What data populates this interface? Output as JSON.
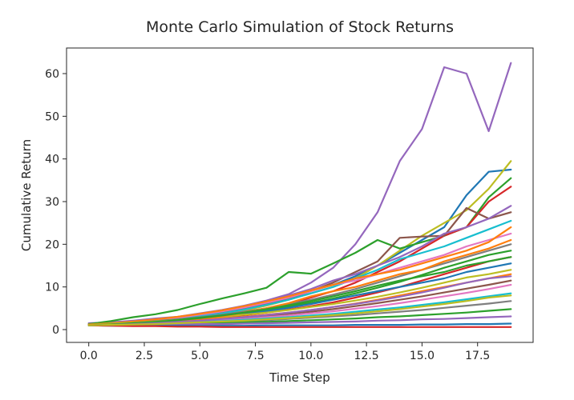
{
  "chart_data": {
    "type": "line",
    "title": "Monte Carlo Simulation of Stock Returns",
    "xlabel": "Time Step",
    "ylabel": "Cumulative Return",
    "xlim": [
      -1,
      20
    ],
    "ylim": [
      -3,
      66
    ],
    "xticks": [
      0.0,
      2.5,
      5.0,
      7.5,
      10.0,
      12.5,
      15.0,
      17.5
    ],
    "xtick_labels": [
      "0.0",
      "2.5",
      "5.0",
      "7.5",
      "10.0",
      "12.5",
      "15.0",
      "17.5"
    ],
    "yticks": [
      0,
      10,
      20,
      30,
      40,
      50,
      60
    ],
    "ytick_labels": [
      "0",
      "10",
      "20",
      "30",
      "40",
      "50",
      "60"
    ],
    "grid": false,
    "legend": "none",
    "x": [
      0,
      1,
      2,
      3,
      4,
      5,
      6,
      7,
      8,
      9,
      10,
      11,
      12,
      13,
      14,
      15,
      16,
      17,
      18,
      19
    ],
    "series": [
      {
        "color": "#9467bd",
        "values": [
          1.5,
          1.7,
          2.1,
          2.6,
          3.0,
          3.8,
          4.6,
          5.6,
          6.8,
          8.3,
          11.0,
          14.5,
          20.0,
          27.5,
          39.5,
          47.0,
          61.5,
          60.0,
          46.5,
          62.5
        ]
      },
      {
        "color": "#1f77b4",
        "values": [
          1.2,
          1.5,
          1.9,
          2.3,
          2.9,
          3.5,
          4.2,
          5.0,
          6.0,
          7.4,
          9.0,
          10.5,
          12.5,
          15.0,
          18.0,
          21.0,
          24.0,
          31.5,
          37.0,
          37.5
        ]
      },
      {
        "color": "#bcbd22",
        "values": [
          1.1,
          1.3,
          1.6,
          2.0,
          2.4,
          3.0,
          3.7,
          4.5,
          5.6,
          7.0,
          8.5,
          10.0,
          12.0,
          15.0,
          18.5,
          22.0,
          25.0,
          28.0,
          33.0,
          39.5
        ]
      },
      {
        "color": "#2ca02c",
        "values": [
          1.3,
          2.0,
          2.9,
          3.6,
          4.6,
          6.0,
          7.3,
          8.5,
          9.8,
          13.5,
          13.1,
          15.5,
          18.0,
          21.0,
          19.0,
          20.5,
          22.0,
          24.0,
          31.0,
          35.5
        ]
      },
      {
        "color": "#d62728",
        "values": [
          1.0,
          1.3,
          1.5,
          1.9,
          2.3,
          2.8,
          3.4,
          4.1,
          5.0,
          6.1,
          7.5,
          9.0,
          11.0,
          13.5,
          16.0,
          19.0,
          22.0,
          24.0,
          30.0,
          33.5
        ]
      },
      {
        "color": "#8c564b",
        "values": [
          1.2,
          1.5,
          1.8,
          2.2,
          2.7,
          3.3,
          4.0,
          4.9,
          6.0,
          7.3,
          9.0,
          11.0,
          13.5,
          16.0,
          21.5,
          21.8,
          22.0,
          28.5,
          26.0,
          27.5
        ]
      },
      {
        "color": "#9467bd",
        "values": [
          1.1,
          1.4,
          1.7,
          2.2,
          2.7,
          3.4,
          4.3,
          5.3,
          6.5,
          8.0,
          9.5,
          11.5,
          13.0,
          15.0,
          17.0,
          19.5,
          22.5,
          24.0,
          26.0,
          29.0
        ]
      },
      {
        "color": "#17becf",
        "values": [
          1.0,
          1.3,
          1.6,
          2.0,
          2.5,
          3.1,
          3.8,
          4.7,
          5.8,
          7.0,
          8.5,
          10.0,
          12.0,
          14.0,
          16.5,
          18.0,
          19.5,
          21.5,
          23.5,
          25.5
        ]
      },
      {
        "color": "#e377c2",
        "values": [
          1.1,
          1.4,
          1.8,
          2.2,
          2.8,
          3.5,
          4.3,
          5.2,
          6.3,
          7.5,
          9.0,
          10.5,
          11.5,
          13.0,
          14.5,
          16.0,
          17.5,
          19.5,
          21.0,
          22.5
        ]
      },
      {
        "color": "#ff7f0e",
        "values": [
          1.2,
          1.5,
          1.9,
          2.4,
          3.0,
          3.7,
          4.5,
          5.5,
          6.6,
          7.8,
          9.2,
          10.5,
          12.0,
          13.0,
          14.0,
          15.5,
          17.0,
          18.5,
          20.5,
          24.0
        ]
      },
      {
        "color": "#7f7f7f",
        "values": [
          1.0,
          1.3,
          1.6,
          2.0,
          2.4,
          2.9,
          3.5,
          4.2,
          5.0,
          6.0,
          7.0,
          8.2,
          9.5,
          11.0,
          12.5,
          14.0,
          15.5,
          17.0,
          18.5,
          20.0
        ]
      },
      {
        "color": "#2ca02c",
        "values": [
          1.1,
          1.3,
          1.6,
          1.9,
          2.3,
          2.8,
          3.3,
          3.9,
          4.6,
          5.4,
          6.3,
          7.3,
          8.5,
          9.8,
          11.2,
          12.8,
          14.5,
          16.0,
          17.5,
          18.5
        ]
      },
      {
        "color": "#d62728",
        "values": [
          1.0,
          1.2,
          1.4,
          1.7,
          2.0,
          2.4,
          2.9,
          3.4,
          4.0,
          4.7,
          5.5,
          6.4,
          7.5,
          8.7,
          10.0,
          11.5,
          13.0,
          14.5,
          16.0,
          17.0
        ]
      },
      {
        "color": "#1f77b4",
        "values": [
          1.0,
          1.2,
          1.5,
          1.8,
          2.1,
          2.6,
          3.1,
          3.6,
          4.3,
          5.1,
          6.0,
          7.0,
          8.0,
          9.0,
          10.0,
          11.0,
          12.0,
          13.5,
          14.5,
          15.5
        ]
      },
      {
        "color": "#bcbd22",
        "values": [
          1.2,
          1.4,
          1.6,
          1.9,
          2.2,
          2.6,
          3.0,
          3.5,
          4.0,
          4.6,
          5.3,
          6.0,
          6.8,
          7.7,
          8.7,
          9.8,
          11.0,
          12.2,
          13.0,
          14.0
        ]
      },
      {
        "color": "#ff7f0e",
        "values": [
          1.0,
          1.2,
          1.4,
          1.6,
          1.9,
          2.2,
          2.6,
          3.0,
          3.5,
          4.0,
          4.6,
          5.3,
          6.1,
          7.0,
          8.0,
          9.0,
          10.0,
          11.0,
          12.0,
          13.0
        ]
      },
      {
        "color": "#8c564b",
        "values": [
          1.1,
          1.2,
          1.4,
          1.6,
          1.8,
          2.1,
          2.4,
          2.8,
          3.2,
          3.7,
          4.2,
          4.8,
          5.5,
          6.2,
          7.0,
          7.8,
          8.7,
          9.6,
          10.5,
          11.5
        ]
      },
      {
        "color": "#e377c2",
        "values": [
          1.0,
          1.1,
          1.3,
          1.5,
          1.7,
          1.9,
          2.2,
          2.5,
          2.9,
          3.3,
          3.8,
          4.3,
          4.9,
          5.5,
          6.2,
          7.0,
          7.8,
          8.6,
          9.5,
          10.5
        ]
      },
      {
        "color": "#17becf",
        "values": [
          1.0,
          1.1,
          1.2,
          1.4,
          1.6,
          1.8,
          2.0,
          2.3,
          2.6,
          2.9,
          3.3,
          3.7,
          4.2,
          4.7,
          5.2,
          5.8,
          6.4,
          7.1,
          7.8,
          8.5
        ]
      },
      {
        "color": "#7f7f7f",
        "values": [
          1.0,
          1.1,
          1.2,
          1.3,
          1.5,
          1.6,
          1.8,
          2.0,
          2.2,
          2.5,
          2.8,
          3.1,
          3.4,
          3.8,
          4.2,
          4.6,
          5.1,
          5.6,
          6.1,
          6.7
        ]
      },
      {
        "color": "#2ca02c",
        "values": [
          1.0,
          1.0,
          1.1,
          1.2,
          1.3,
          1.4,
          1.5,
          1.7,
          1.8,
          2.0,
          2.2,
          2.4,
          2.6,
          2.9,
          3.1,
          3.4,
          3.7,
          4.0,
          4.4,
          4.8
        ]
      },
      {
        "color": "#9467bd",
        "values": [
          1.0,
          1.0,
          1.1,
          1.1,
          1.2,
          1.3,
          1.3,
          1.4,
          1.5,
          1.6,
          1.7,
          1.8,
          1.9,
          2.1,
          2.2,
          2.4,
          2.5,
          2.7,
          2.9,
          3.1
        ]
      },
      {
        "color": "#1f77b4",
        "values": [
          1.0,
          0.9,
          0.9,
          0.9,
          0.9,
          0.9,
          0.9,
          0.9,
          1.0,
          1.0,
          1.0,
          1.0,
          1.1,
          1.1,
          1.1,
          1.2,
          1.2,
          1.3,
          1.3,
          1.4
        ]
      },
      {
        "color": "#d62728",
        "values": [
          1.0,
          0.9,
          0.8,
          0.8,
          0.7,
          0.7,
          0.6,
          0.6,
          0.6,
          0.6,
          0.6,
          0.6,
          0.6,
          0.6,
          0.6,
          0.6,
          0.6,
          0.6,
          0.6,
          0.6
        ]
      },
      {
        "color": "#ff7f0e",
        "values": [
          1.1,
          1.2,
          1.4,
          1.6,
          2.0,
          2.5,
          3.1,
          4.0,
          5.0,
          6.2,
          7.8,
          9.0,
          10.0,
          11.5,
          13.0,
          14.0,
          16.0,
          17.5,
          19.0,
          21.0
        ]
      },
      {
        "color": "#2ca02c",
        "values": [
          1.0,
          1.2,
          1.5,
          1.8,
          2.2,
          2.7,
          3.3,
          4.0,
          4.8,
          5.7,
          6.7,
          7.8,
          9.0,
          10.3,
          11.5,
          12.5,
          13.5,
          15.0,
          16.0,
          17.0
        ]
      },
      {
        "color": "#9467bd",
        "values": [
          1.0,
          1.1,
          1.3,
          1.5,
          1.8,
          2.1,
          2.5,
          2.9,
          3.4,
          4.0,
          4.6,
          5.3,
          6.0,
          6.8,
          7.7,
          8.7,
          9.8,
          11.0,
          12.0,
          12.5
        ]
      },
      {
        "color": "#bcbd22",
        "values": [
          1.0,
          1.1,
          1.2,
          1.3,
          1.5,
          1.7,
          1.9,
          2.1,
          2.4,
          2.7,
          3.0,
          3.4,
          3.8,
          4.3,
          4.8,
          5.4,
          6.0,
          6.7,
          7.5,
          8.0
        ]
      }
    ]
  }
}
